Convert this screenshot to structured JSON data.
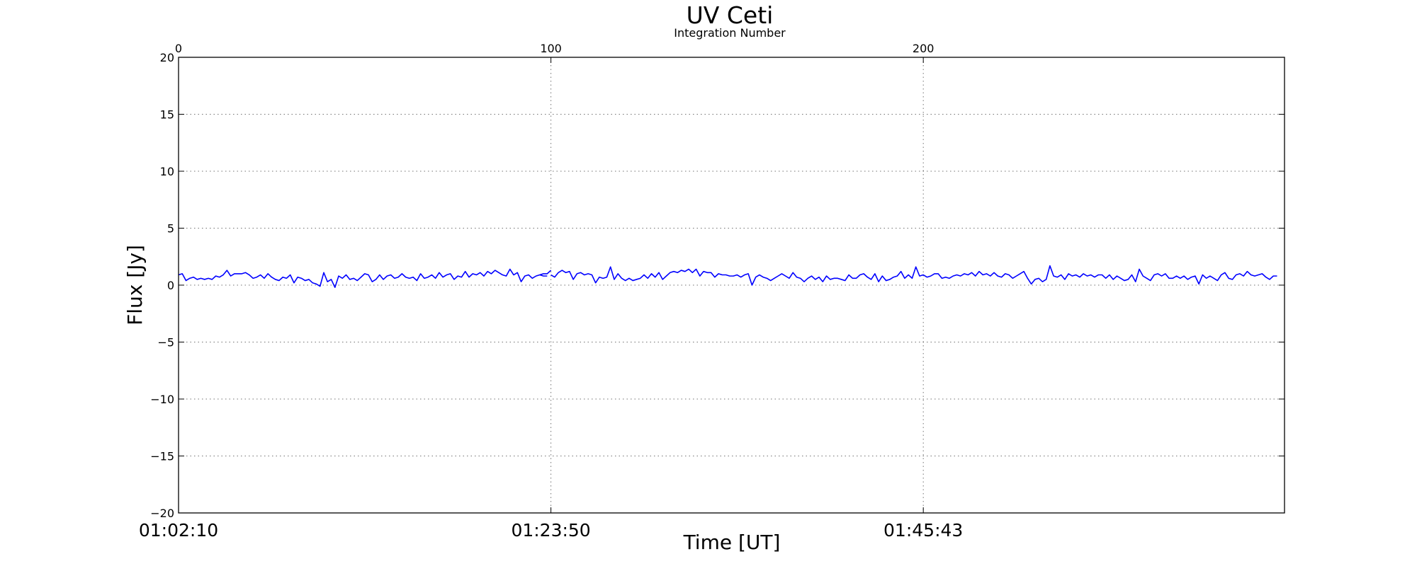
{
  "chart_data": {
    "type": "line",
    "title": "UV Ceti",
    "top_axis_label": "Integration Number",
    "xlabel": "Time [UT]",
    "ylabel": "Flux [Jy]",
    "ylim": [
      -20,
      20
    ],
    "y_ticks": [
      20,
      15,
      10,
      5,
      0,
      -5,
      -10,
      -15,
      -20
    ],
    "x_integration_range": [
      0,
      297
    ],
    "top_ticks": [
      0,
      100,
      200
    ],
    "bottom_ticks": [
      {
        "integration": 0,
        "label": "01:02:10"
      },
      {
        "integration": 100,
        "label": "01:23:50"
      },
      {
        "integration": 200,
        "label": "01:45:43"
      }
    ],
    "grid": true,
    "line_color": "#0000ff",
    "series": [
      {
        "name": "",
        "segments": [
          {
            "x_start": 0,
            "values": [
              0.9,
              1.0,
              0.4,
              0.6,
              0.7,
              0.5,
              0.6,
              0.5,
              0.6,
              0.5,
              0.8,
              0.7,
              0.9,
              1.3,
              0.8,
              1.0,
              1.0,
              1.0,
              1.1,
              0.9,
              0.6,
              0.7,
              0.9,
              0.6,
              1.0,
              0.7,
              0.5,
              0.4,
              0.7,
              0.6,
              0.9,
              0.2,
              0.7,
              0.6,
              0.4,
              0.5,
              0.2,
              0.1,
              -0.1,
              1.1,
              0.3,
              0.5,
              -0.2,
              0.8,
              0.6,
              0.9,
              0.5,
              0.6,
              0.4,
              0.7,
              1.0,
              0.9,
              0.3,
              0.5,
              0.9,
              0.5,
              0.8,
              0.9,
              0.6,
              0.7,
              1.0,
              0.7,
              0.6,
              0.7,
              0.4,
              1.0,
              0.6,
              0.7,
              0.9,
              0.6,
              1.1,
              0.7,
              0.9,
              1.0,
              0.5,
              0.8,
              0.7,
              1.2,
              0.7,
              1.0,
              0.9,
              1.1,
              0.8,
              1.2,
              1.0,
              1.3,
              1.1,
              0.9,
              0.8,
              1.4,
              0.9,
              1.1,
              0.3,
              0.8,
              0.9,
              0.6,
              0.8,
              0.9,
              1.0,
              1.0,
              1.3
            ]
          },
          {
            "x_start": 97,
            "values": [
              0.9,
              0.8,
              0.8
            ]
          },
          {
            "x_start": 100,
            "values": [
              0.9,
              0.7,
              1.1,
              1.3,
              1.1,
              1.2,
              0.5,
              1.0,
              1.1,
              0.9,
              1.0,
              0.9,
              0.2,
              0.7,
              0.6,
              0.7,
              1.6,
              0.5,
              1.0,
              0.6,
              0.4,
              0.6,
              0.4,
              0.5,
              0.6,
              0.9,
              0.6,
              1.0,
              0.7,
              1.1,
              0.5,
              0.8,
              1.1,
              1.2,
              1.1,
              1.3,
              1.2,
              1.4,
              1.1,
              1.4,
              0.8,
              1.2,
              1.1,
              1.1,
              0.7,
              1.0,
              0.9,
              0.9,
              0.8,
              0.8,
              0.9,
              0.7,
              0.9,
              1.0,
              0.0,
              0.7,
              0.9,
              0.7,
              0.6,
              0.4,
              0.6,
              0.8,
              1.0,
              0.8,
              0.6,
              1.1,
              0.7,
              0.6,
              0.3,
              0.6,
              0.8,
              0.5,
              0.7,
              0.3,
              0.8,
              0.5,
              0.6,
              0.6,
              0.5,
              0.4,
              0.9,
              0.6,
              0.6,
              0.9,
              1.0,
              0.7,
              0.5,
              1.0,
              0.3,
              0.8,
              0.4,
              0.5,
              0.7,
              0.8,
              1.2,
              0.6,
              0.9,
              0.6,
              1.6,
              0.8,
              0.9,
              0.7,
              0.8,
              1.0,
              1.0,
              0.6,
              0.7,
              0.6,
              0.8,
              0.9,
              0.8,
              1.0,
              0.9,
              1.1,
              0.8,
              1.2,
              0.9,
              1.0,
              0.8,
              1.1,
              0.8,
              0.7,
              1.0,
              0.9,
              0.6,
              0.8,
              1.0,
              1.2,
              0.6,
              0.1,
              0.5,
              0.6,
              0.3,
              0.5,
              1.7,
              0.8,
              0.7,
              0.9,
              0.5,
              1.0,
              0.8,
              0.9,
              0.7,
              1.0,
              0.8,
              0.9,
              0.7,
              0.9,
              0.9,
              0.6,
              0.9,
              0.5,
              0.8,
              0.6,
              0.4,
              0.5,
              0.9,
              0.3,
              1.4,
              0.8,
              0.6,
              0.4,
              0.9,
              1.0,
              0.8,
              1.0,
              0.6,
              0.6,
              0.8,
              0.6,
              0.8,
              0.5,
              0.7,
              0.8,
              0.1,
              0.9,
              0.6,
              0.8,
              0.6,
              0.4,
              0.9,
              1.1,
              0.6,
              0.5,
              0.9,
              1.0,
              0.8,
              1.2,
              0.9,
              0.8,
              0.9,
              1.0,
              0.7,
              0.5,
              0.8,
              0.8
            ]
          }
        ]
      }
    ]
  }
}
